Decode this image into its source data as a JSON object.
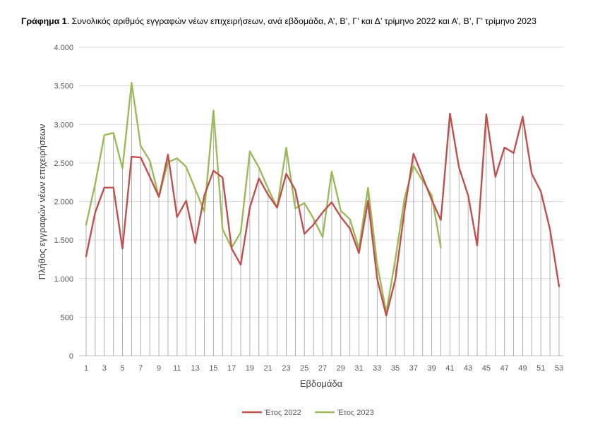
{
  "chart_data": {
    "type": "line",
    "title_bold": "Γράφημα 1",
    "title_rest": ". Συνολικός αριθμός εγγραφών νέων επιχειρήσεων, ανά εβδομάδα, Α’, Β’, Γ’ και Δ’ τρίμηνο 2022 και Α’, Β’, Γ’ τρίμηνο 2023",
    "xlabel": "Εβδομάδα",
    "ylabel": "Πλήθος εγγραφών νέων επιχειρήσεων",
    "ylim": [
      0,
      4000
    ],
    "yticks": [
      0,
      500,
      1000,
      1500,
      2000,
      2500,
      3000,
      3500,
      4000
    ],
    "ytick_labels": [
      "0",
      "500",
      "1.000",
      "1.500",
      "2.000",
      "2.500",
      "3.000",
      "3.500",
      "4.000"
    ],
    "xlim": [
      1,
      53
    ],
    "xticks": [
      1,
      3,
      5,
      7,
      9,
      11,
      13,
      15,
      17,
      19,
      21,
      23,
      25,
      27,
      29,
      31,
      33,
      35,
      37,
      39,
      41,
      43,
      45,
      47,
      49,
      51,
      53
    ],
    "grid": "horizontal",
    "drop_lines": true,
    "legend_position": "bottom",
    "series": [
      {
        "name": "Έτος 2022",
        "color": "#C0504D",
        "x": [
          1,
          2,
          3,
          4,
          5,
          6,
          7,
          8,
          9,
          10,
          11,
          12,
          13,
          14,
          15,
          16,
          17,
          18,
          19,
          20,
          21,
          22,
          23,
          24,
          25,
          26,
          27,
          28,
          29,
          30,
          31,
          32,
          33,
          34,
          35,
          36,
          37,
          38,
          39,
          40,
          41,
          42,
          43,
          44,
          45,
          46,
          47,
          48,
          49,
          50,
          51,
          52,
          53
        ],
        "values": [
          1290,
          1860,
          2180,
          2180,
          1390,
          2580,
          2570,
          2320,
          2060,
          2610,
          1800,
          2010,
          1460,
          2080,
          2400,
          2310,
          1390,
          1180,
          1920,
          2300,
          2090,
          1920,
          2360,
          2150,
          1580,
          1700,
          1860,
          1990,
          1800,
          1650,
          1330,
          2010,
          1000,
          520,
          990,
          1880,
          2620,
          2320,
          2020,
          1760,
          3140,
          2440,
          2080,
          1430,
          3130,
          2320,
          2700,
          2630,
          3100,
          2360,
          2130,
          1640,
          900
        ]
      },
      {
        "name": "Έτος 2023",
        "color": "#9BBB59",
        "x": [
          1,
          2,
          3,
          4,
          5,
          6,
          7,
          8,
          9,
          10,
          11,
          12,
          13,
          14,
          15,
          16,
          17,
          18,
          19,
          20,
          21,
          22,
          23,
          24,
          25,
          26,
          27,
          28,
          29,
          30,
          31,
          32,
          33,
          34,
          35,
          36,
          37,
          38,
          39,
          40
        ],
        "values": [
          1700,
          2230,
          2860,
          2890,
          2430,
          3540,
          2720,
          2530,
          2060,
          2510,
          2560,
          2450,
          2160,
          1870,
          3180,
          1640,
          1400,
          1600,
          2650,
          2440,
          2170,
          1920,
          2700,
          1910,
          1980,
          1780,
          1540,
          2390,
          1880,
          1770,
          1390,
          2180,
          1190,
          560,
          1250,
          2040,
          2460,
          2270,
          2080,
          1400
        ]
      }
    ]
  }
}
